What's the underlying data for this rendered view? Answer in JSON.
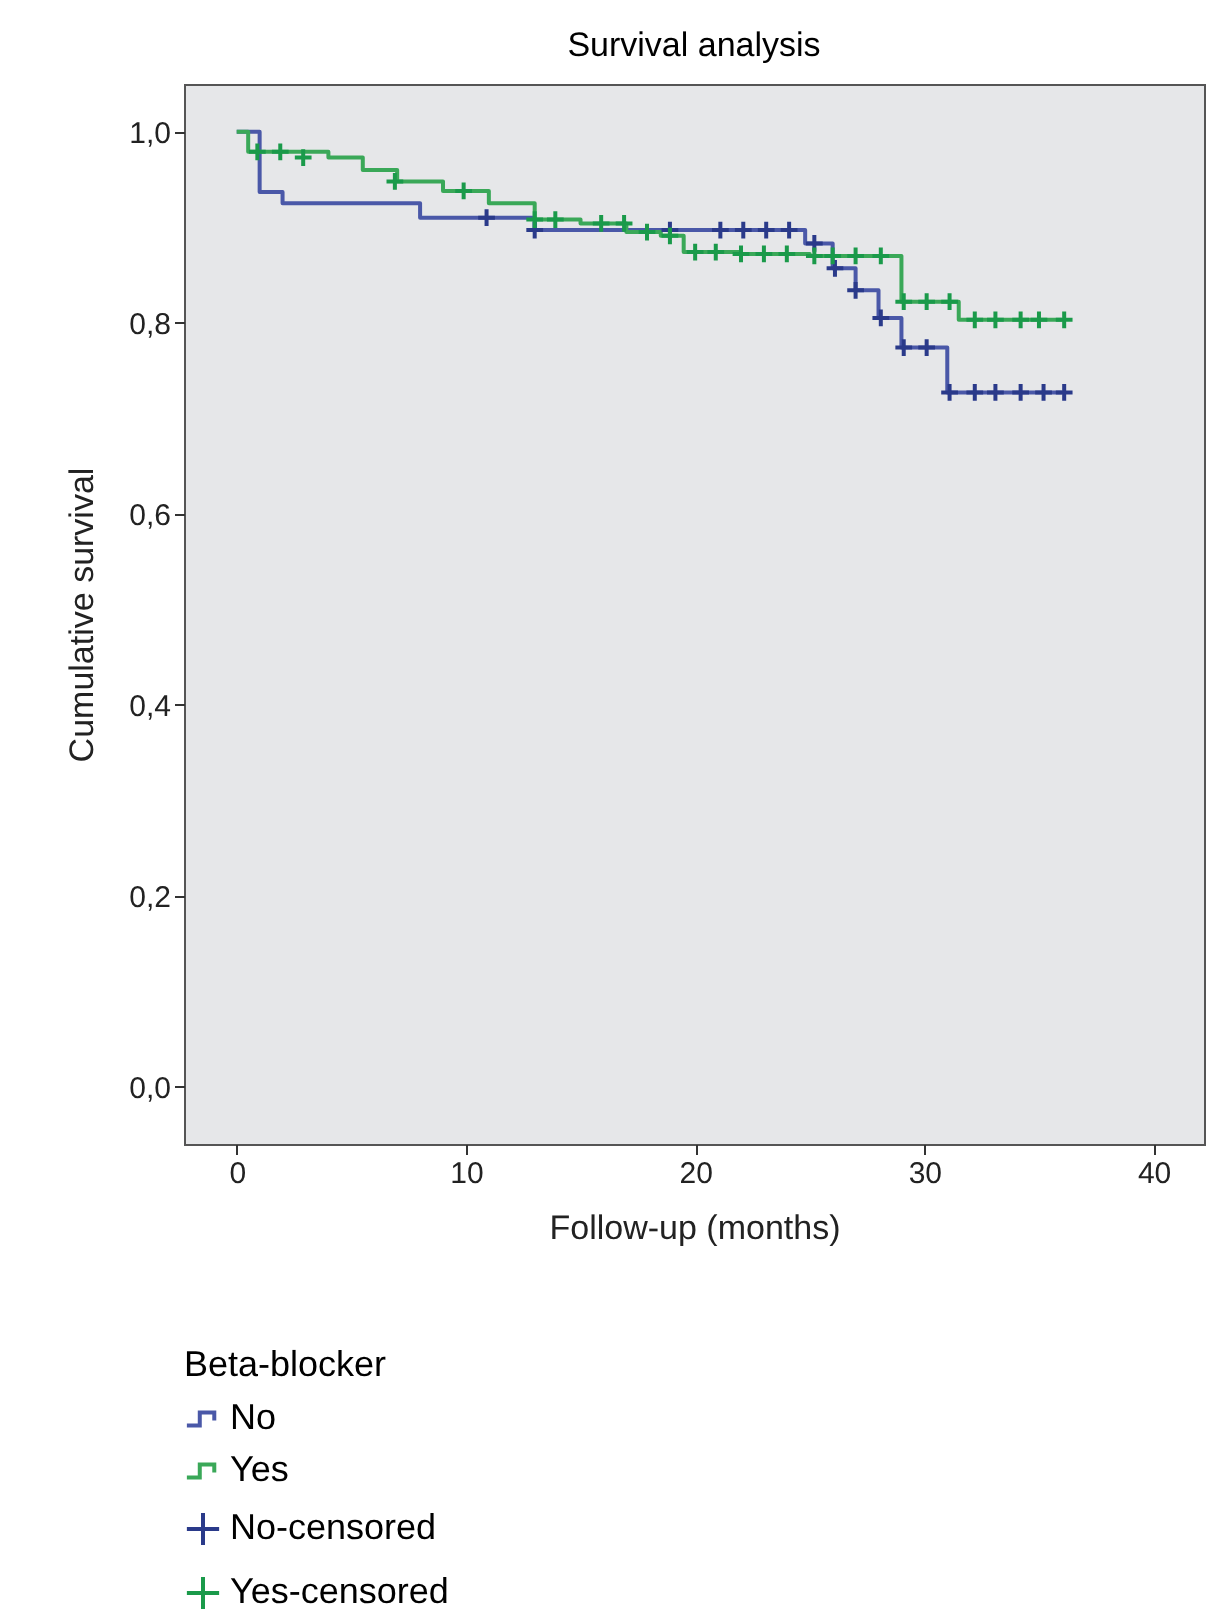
{
  "chart_data": {
    "type": "step",
    "title": "Survival analysis",
    "xlabel": "Follow-up (months)",
    "ylabel": "Cumulative survival",
    "legend_title": "Beta-blocker",
    "legend": "bottom",
    "grid": false,
    "line_style": "solid",
    "xlim": [
      -2.3,
      42.2
    ],
    "xticks": [
      0,
      10,
      20,
      30,
      40
    ],
    "ylim": [
      -0.06,
      1.05
    ],
    "yticks": [
      {
        "value": 0,
        "label": "0,0"
      },
      {
        "value": 0.2,
        "label": "0,2"
      },
      {
        "value": 0.4,
        "label": "0,4"
      },
      {
        "value": 0.6,
        "label": "0,6"
      },
      {
        "value": 0.8,
        "label": "0,8"
      },
      {
        "value": 1,
        "label": "1,0"
      }
    ],
    "series": [
      {
        "name": "No",
        "color": "#4a58a8",
        "x": [
          0,
          1,
          2,
          8,
          13,
          24.8,
          26,
          27,
          28,
          29,
          31,
          36
        ],
        "values": [
          1,
          0.937,
          0.925,
          0.91,
          0.897,
          0.883,
          0.857,
          0.834,
          0.805,
          0.774,
          0.727,
          0.727
        ]
      },
      {
        "name": "Yes",
        "color": "#3aa858",
        "x": [
          0,
          0.5,
          4,
          5.5,
          7,
          9,
          11,
          13,
          15,
          17,
          18.5,
          19.5,
          22,
          25,
          29,
          31.5,
          36
        ],
        "values": [
          1,
          0.979,
          0.973,
          0.96,
          0.948,
          0.938,
          0.925,
          0.908,
          0.904,
          0.895,
          0.891,
          0.874,
          0.872,
          0.87,
          0.822,
          0.803,
          0.803
        ]
      },
      {
        "name": "No-censored",
        "type": "scatter",
        "marker": "cross",
        "color": "#2a3a8a",
        "x": [
          10.9,
          13,
          18.9,
          21.1,
          22.1,
          23.1,
          24.1,
          25.2,
          26.1,
          27,
          28.1,
          29.1,
          30.1,
          31.1,
          32.2,
          33.1,
          34.2,
          35.2,
          36.1
        ],
        "values": [
          0.91,
          0.897,
          0.897,
          0.897,
          0.897,
          0.897,
          0.897,
          0.883,
          0.857,
          0.834,
          0.805,
          0.774,
          0.774,
          0.727,
          0.727,
          0.727,
          0.727,
          0.727,
          0.727
        ]
      },
      {
        "name": "Yes-censored",
        "type": "scatter",
        "marker": "cross",
        "color": "#1a9a4a",
        "x": [
          0.9,
          1.9,
          2.9,
          6.9,
          9.9,
          13,
          13.9,
          15.9,
          16.9,
          17.9,
          18.9,
          20,
          20.9,
          22,
          23,
          24,
          25.2,
          26,
          27,
          28.1,
          29.1,
          30.1,
          31.1,
          32.2,
          33.1,
          34.2,
          35,
          36.1
        ],
        "values": [
          0.979,
          0.979,
          0.973,
          0.948,
          0.938,
          0.908,
          0.908,
          0.904,
          0.904,
          0.895,
          0.891,
          0.874,
          0.874,
          0.872,
          0.872,
          0.872,
          0.87,
          0.87,
          0.87,
          0.87,
          0.822,
          0.822,
          0.822,
          0.803,
          0.803,
          0.803,
          0.803,
          0.803
        ]
      }
    ]
  }
}
